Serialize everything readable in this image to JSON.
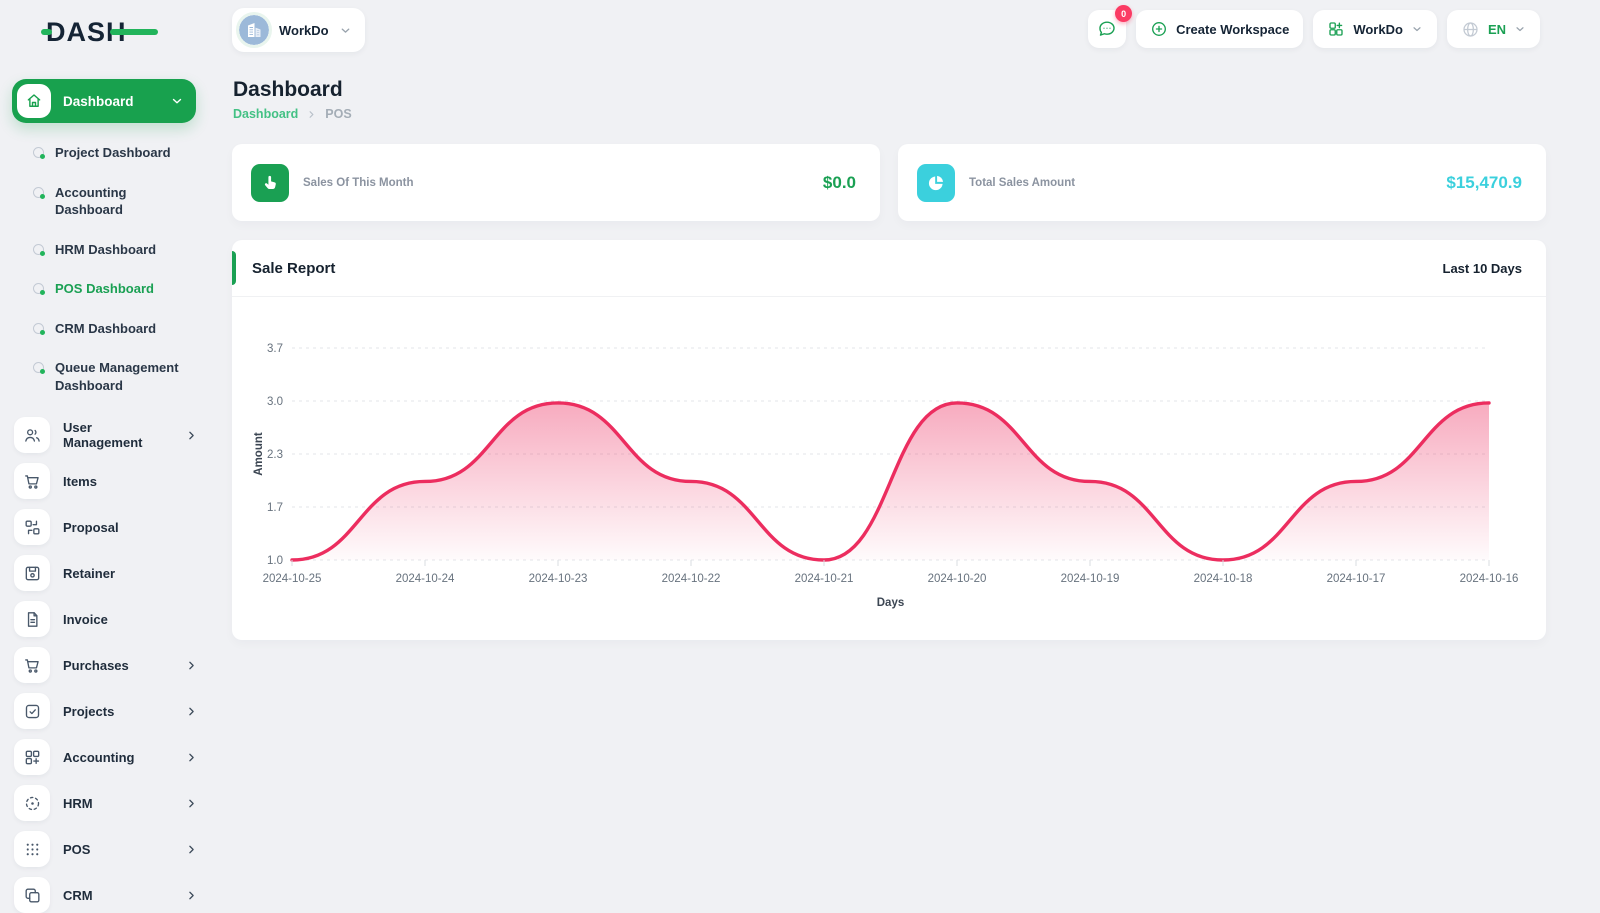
{
  "brand": {
    "logo_text": "DASH"
  },
  "topbar": {
    "workspace": {
      "name": "WorkDo"
    },
    "messages": {
      "badge": "0"
    },
    "create_workspace": {
      "label": "Create Workspace"
    },
    "workdo_menu": {
      "label": "WorkDo"
    },
    "language": {
      "label": "EN"
    }
  },
  "sidebar": {
    "dashboard": {
      "label": "Dashboard"
    },
    "dashboard_children": [
      {
        "label": "Project Dashboard",
        "active": false
      },
      {
        "label": "Accounting Dashboard",
        "active": false
      },
      {
        "label": "HRM Dashboard",
        "active": false
      },
      {
        "label": "POS Dashboard",
        "active": true
      },
      {
        "label": "CRM Dashboard",
        "active": false
      },
      {
        "label": "Queue Management Dashboard",
        "active": false
      }
    ],
    "items": [
      {
        "label": "User Management",
        "icon": "users-icon",
        "has_children": true
      },
      {
        "label": "Items",
        "icon": "cart-icon",
        "has_children": false
      },
      {
        "label": "Proposal",
        "icon": "proposal-icon",
        "has_children": false
      },
      {
        "label": "Retainer",
        "icon": "retainer-icon",
        "has_children": false
      },
      {
        "label": "Invoice",
        "icon": "invoice-icon",
        "has_children": false
      },
      {
        "label": "Purchases",
        "icon": "cart-icon",
        "has_children": true
      },
      {
        "label": "Projects",
        "icon": "projects-icon",
        "has_children": true
      },
      {
        "label": "Accounting",
        "icon": "accounting-icon",
        "has_children": true
      },
      {
        "label": "HRM",
        "icon": "hrm-icon",
        "has_children": true
      },
      {
        "label": "POS",
        "icon": "pos-icon",
        "has_children": true
      },
      {
        "label": "CRM",
        "icon": "crm-icon",
        "has_children": true
      }
    ]
  },
  "page": {
    "title": "Dashboard",
    "breadcrumb": {
      "parent": "Dashboard",
      "current": "POS"
    }
  },
  "stats": [
    {
      "label": "Sales Of This Month",
      "value": "$0.0",
      "accent": "#1aa053",
      "icon": "hand-pointer-icon"
    },
    {
      "label": "Total Sales Amount",
      "value": "$15,470.9",
      "accent": "#3bd0dd",
      "icon": "pie-chart-icon"
    }
  ],
  "chart_card": {
    "title": "Sale Report",
    "period": "Last 10 Days"
  },
  "chart_data": {
    "type": "area",
    "title": "Sale Report",
    "x": [
      "2024-10-25",
      "2024-10-24",
      "2024-10-23",
      "2024-10-22",
      "2024-10-21",
      "2024-10-20",
      "2024-10-19",
      "2024-10-18",
      "2024-10-17",
      "2024-10-16"
    ],
    "series": [
      {
        "name": "Amount",
        "values": [
          1.0,
          2.0,
          3.0,
          2.0,
          1.0,
          3.0,
          2.0,
          1.0,
          2.0,
          3.0
        ]
      }
    ],
    "xlabel": "Days",
    "ylabel": "Amount",
    "ylim": [
      1.0,
      3.7
    ],
    "ytick_labels": [
      "1.0",
      "1.7",
      "2.3",
      "3.0",
      "3.7"
    ],
    "grid": "horizontal-dashed",
    "legend": "none",
    "line_color": "#ec2d5f",
    "fill_from": "rgba(236,45,95,0.40)",
    "fill_to": "rgba(236,45,95,0.02)"
  },
  "colors": {
    "primary": "#1aa053",
    "breadcrumb_link": "#43c184",
    "badge": "#fb3b64"
  }
}
